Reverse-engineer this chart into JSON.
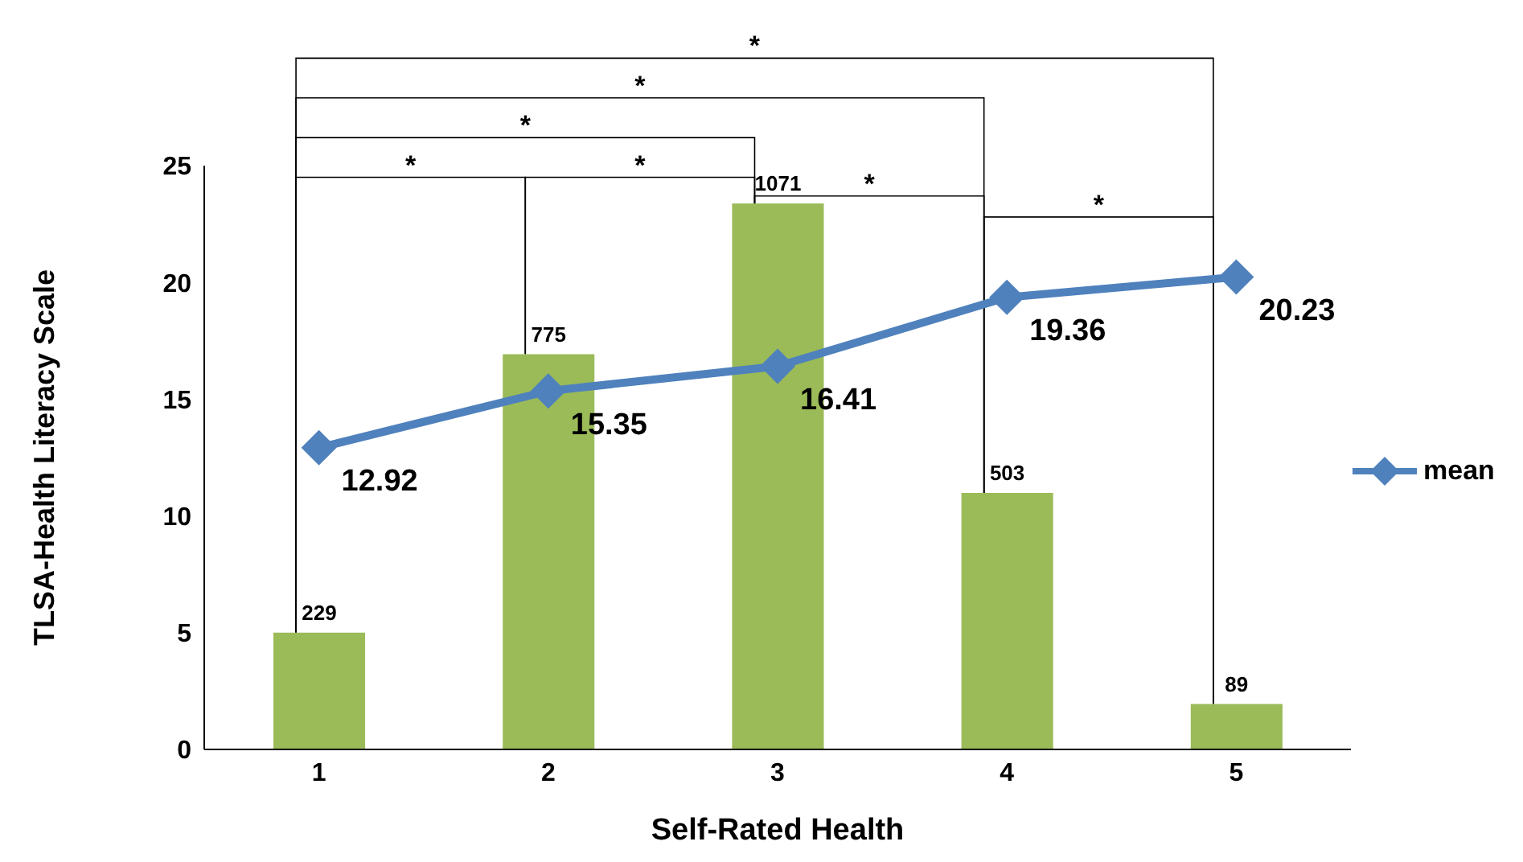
{
  "chart_data": {
    "type": "bar",
    "xlabel": "Self-Rated Health",
    "ylabel": "TLSA-Health Literacy Scale",
    "categories": [
      "1",
      "2",
      "3",
      "4",
      "5"
    ],
    "series": [
      {
        "type": "bar",
        "color": "#9bbb59",
        "values": [
          229,
          775,
          1071,
          503,
          89
        ],
        "axis": "y2"
      },
      {
        "type": "line",
        "name": "mean",
        "color": "#4f81bd",
        "values": [
          12.92,
          15.35,
          16.41,
          19.36,
          20.23
        ],
        "marker": "diamond"
      }
    ],
    "ylim": [
      0,
      25
    ],
    "yticks": [
      0,
      5,
      10,
      15,
      20,
      25
    ],
    "y2lim": [
      0,
      1145
    ],
    "data_labels": true,
    "grid": false,
    "legend": "right",
    "tick_labels": "xy",
    "annotations": [
      "*",
      "*",
      "*",
      "*",
      "*",
      "*",
      "*"
    ]
  }
}
